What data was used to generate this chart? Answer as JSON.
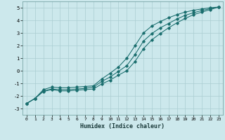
{
  "xlabel": "Humidex (Indice chaleur)",
  "bg_color": "#cce8ec",
  "grid_color": "#aacdd2",
  "line_color": "#1a6e6e",
  "xlim": [
    -0.5,
    23.5
  ],
  "ylim": [
    -3.5,
    5.5
  ],
  "xticks": [
    0,
    1,
    2,
    3,
    4,
    5,
    6,
    7,
    8,
    9,
    10,
    11,
    12,
    13,
    14,
    15,
    16,
    17,
    18,
    19,
    20,
    21,
    22,
    23
  ],
  "yticks": [
    -3,
    -2,
    -1,
    0,
    1,
    2,
    3,
    4,
    5
  ],
  "x_data": [
    0,
    1,
    2,
    3,
    4,
    5,
    6,
    7,
    8,
    9,
    10,
    11,
    12,
    13,
    14,
    15,
    16,
    17,
    18,
    19,
    20,
    21,
    22,
    23
  ],
  "y_upper": [
    -2.6,
    -2.2,
    -1.5,
    -1.3,
    -1.35,
    -1.35,
    -1.3,
    -1.25,
    -1.2,
    -0.65,
    -0.2,
    0.3,
    1.0,
    2.0,
    3.0,
    3.55,
    3.9,
    4.2,
    4.45,
    4.65,
    4.8,
    4.9,
    5.0,
    5.05
  ],
  "y_mid": [
    -2.6,
    -2.2,
    -1.6,
    -1.45,
    -1.5,
    -1.5,
    -1.45,
    -1.4,
    -1.3,
    -0.85,
    -0.5,
    -0.05,
    0.4,
    1.3,
    2.35,
    2.95,
    3.4,
    3.75,
    4.1,
    4.4,
    4.6,
    4.78,
    4.92,
    5.05
  ],
  "y_lower": [
    -2.6,
    -2.2,
    -1.65,
    -1.5,
    -1.6,
    -1.6,
    -1.55,
    -1.5,
    -1.45,
    -1.05,
    -0.75,
    -0.35,
    0.0,
    0.75,
    1.75,
    2.45,
    2.95,
    3.4,
    3.8,
    4.15,
    4.45,
    4.65,
    4.85,
    5.05
  ]
}
